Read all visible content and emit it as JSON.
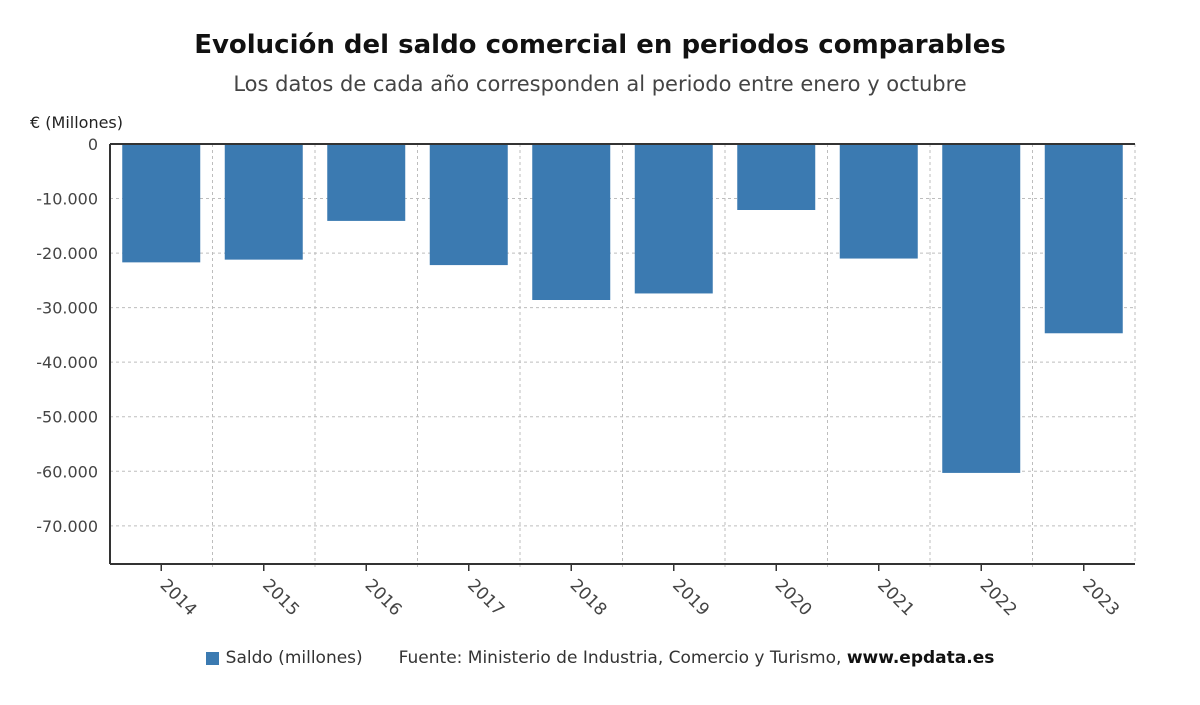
{
  "title": "Evolución del saldo comercial en periodos comparables",
  "subtitle": "Los datos de cada año corresponden al periodo entre enero y octubre",
  "unit_label": "€ (Millones)",
  "legend": {
    "label": "Saldo (millones)",
    "color": "#3b7ab1"
  },
  "source": {
    "prefix": "Fuente: Ministerio de Industria, Comercio y Turismo, ",
    "site": "www.epdata.es"
  },
  "chart_data": {
    "type": "bar",
    "categories": [
      "2014",
      "2015",
      "2016",
      "2017",
      "2018",
      "2019",
      "2020",
      "2021",
      "2022",
      "2023"
    ],
    "series": [
      {
        "name": "Saldo (millones)",
        "values": [
          -21700,
          -21200,
          -14100,
          -22200,
          -28600,
          -27400,
          -12100,
          -21000,
          -60300,
          -34700
        ]
      }
    ],
    "ylim": [
      -77000,
      0
    ],
    "yticks": [
      0,
      -10000,
      -20000,
      -30000,
      -40000,
      -50000,
      -60000,
      -70000
    ],
    "ytick_labels": [
      "0",
      "-10.000",
      "-20.000",
      "-30.000",
      "-40.000",
      "-50.000",
      "-60.000",
      "-70.000"
    ],
    "ylabel": "€ (Millones)",
    "grid": true,
    "legend_position": "bottom",
    "bar_color": "#3b7ab1"
  }
}
